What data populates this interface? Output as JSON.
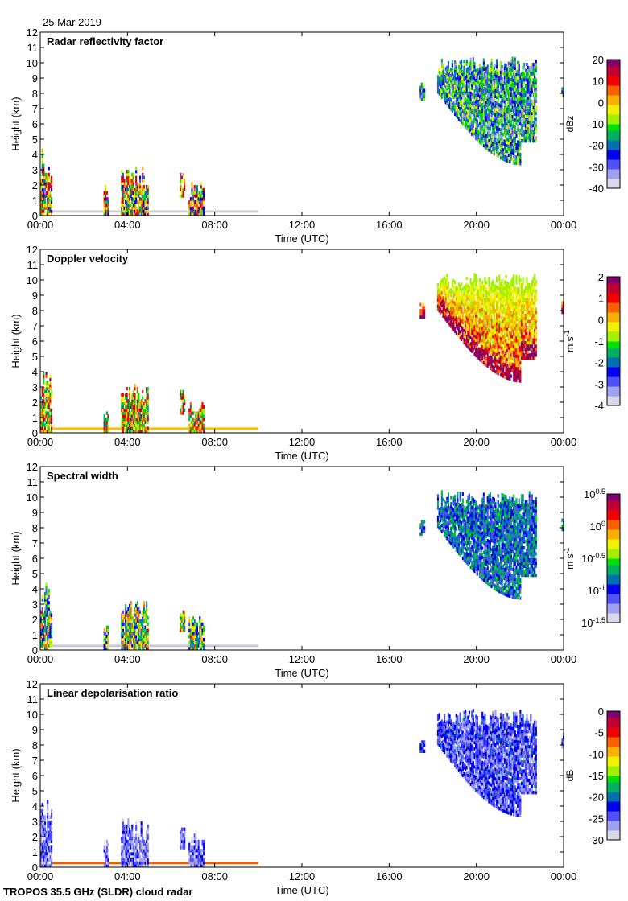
{
  "header": {
    "date": "25 Mar 2019"
  },
  "footer": {
    "instrument": "TROPOS 35.5 GHz (SLDR) cloud radar"
  },
  "chart_data": [
    {
      "type": "heatmap",
      "title": "Radar reflectivity factor",
      "xlabel": "Time (UTC)",
      "ylabel": "Height (km)",
      "xticks": [
        "00:00",
        "04:00",
        "08:00",
        "12:00",
        "16:00",
        "20:00",
        "00:00"
      ],
      "ylim": [
        0,
        12
      ],
      "yticks": [
        "0",
        "1",
        "2",
        "3",
        "4",
        "5",
        "6",
        "7",
        "8",
        "9",
        "10",
        "11",
        "12"
      ],
      "colorbar": {
        "label": "dBz",
        "range": [
          -40,
          20
        ],
        "ticks": [
          "20",
          "10",
          "0",
          "-10",
          "-20",
          "-30",
          "-40"
        ]
      },
      "palette": "reflectivity"
    },
    {
      "type": "heatmap",
      "title": "Doppler velocity",
      "xlabel": "Time (UTC)",
      "ylabel": "Height (km)",
      "xticks": [
        "00:00",
        "04:00",
        "08:00",
        "12:00",
        "16:00",
        "20:00",
        "00:00"
      ],
      "ylim": [
        0,
        12
      ],
      "yticks": [
        "0",
        "1",
        "2",
        "3",
        "4",
        "5",
        "6",
        "7",
        "8",
        "9",
        "10",
        "11",
        "12"
      ],
      "colorbar": {
        "label": "m s",
        "label_sup": "-1",
        "range": [
          -4,
          2
        ],
        "ticks": [
          "2",
          "1",
          "0",
          "-1",
          "-2",
          "-3",
          "-4"
        ]
      },
      "palette": "velocity"
    },
    {
      "type": "heatmap",
      "title": "Spectral width",
      "xlabel": "Time (UTC)",
      "ylabel": "Height (km)",
      "xticks": [
        "00:00",
        "04:00",
        "08:00",
        "12:00",
        "16:00",
        "20:00",
        "00:00"
      ],
      "ylim": [
        0,
        12
      ],
      "yticks": [
        "0",
        "1",
        "2",
        "3",
        "4",
        "5",
        "6",
        "7",
        "8",
        "9",
        "10",
        "11",
        "12"
      ],
      "colorbar": {
        "label": "m s",
        "label_sup": "-1",
        "range": [
          -1.5,
          0.5
        ],
        "scale": "log10",
        "ticks": [
          {
            "base": "10",
            "exp": "0.5"
          },
          {
            "base": "10",
            "exp": "0"
          },
          {
            "base": "10",
            "exp": "-0.5"
          },
          {
            "base": "10",
            "exp": "-1"
          },
          {
            "base": "10",
            "exp": "-1.5"
          }
        ]
      },
      "palette": "width"
    },
    {
      "type": "heatmap",
      "title": "Linear depolarisation ratio",
      "xlabel": "Time (UTC)",
      "ylabel": "Height (km)",
      "xticks": [
        "00:00",
        "04:00",
        "08:00",
        "12:00",
        "16:00",
        "20:00",
        "00:00"
      ],
      "ylim": [
        0,
        12
      ],
      "yticks": [
        "0",
        "1",
        "2",
        "3",
        "4",
        "5",
        "6",
        "7",
        "8",
        "9",
        "10",
        "11",
        "12"
      ],
      "colorbar": {
        "label": "dB",
        "range": [
          -30,
          0
        ],
        "ticks": [
          "0",
          "-5",
          "-10",
          "-15",
          "-20",
          "-25",
          "-30"
        ]
      },
      "palette": "ldr"
    }
  ],
  "echo_regions_hours_km": [
    {
      "t": [
        0.0,
        0.5
      ],
      "z": [
        0,
        4.4
      ]
    },
    {
      "t": [
        2.9,
        3.1
      ],
      "z": [
        0,
        1.9
      ]
    },
    {
      "t": [
        3.7,
        4.9
      ],
      "z": [
        0,
        3.2
      ]
    },
    {
      "t": [
        6.4,
        6.6
      ],
      "z": [
        1.2,
        2.9
      ]
    },
    {
      "t": [
        6.8,
        7.5
      ],
      "z": [
        0,
        2.2
      ]
    },
    {
      "t": [
        17.4,
        17.6
      ],
      "z": [
        7.5,
        8.6
      ]
    },
    {
      "t": [
        18.2,
        22.7
      ],
      "z": [
        3.3,
        10.3
      ]
    },
    {
      "t": [
        23.9,
        24.0
      ],
      "z": [
        7.8,
        8.8
      ]
    }
  ]
}
